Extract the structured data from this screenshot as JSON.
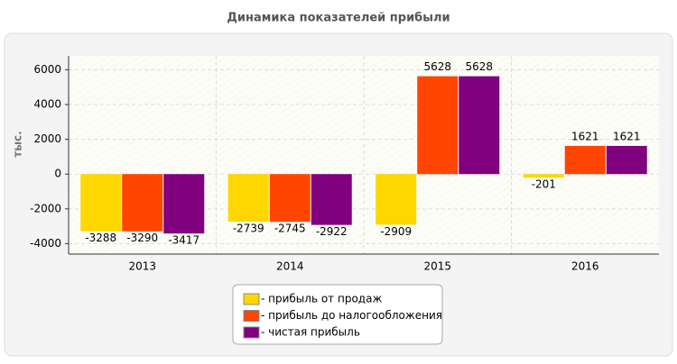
{
  "chart_data": {
    "type": "bar",
    "title": "Динамика показателей прибыли",
    "y_label": "тыс.",
    "categories": [
      "2013",
      "2014",
      "2015",
      "2016"
    ],
    "series": [
      {
        "name": "- прибыль от продаж",
        "color": "#ffd700",
        "values": [
          -3288,
          -2739,
          -2909,
          -201
        ]
      },
      {
        "name": "- прибыль до налогообложения",
        "color": "#ff4500",
        "values": [
          -3290,
          -2745,
          5628,
          1621
        ]
      },
      {
        "name": "- чистая прибыль",
        "color": "#800080",
        "values": [
          -3417,
          -2922,
          5628,
          1621
        ]
      }
    ],
    "ylim": [
      -4600,
      6800
    ],
    "yticks": [
      -4000,
      -2000,
      0,
      2000,
      4000,
      6000
    ],
    "grid": true,
    "legend": "bottom"
  }
}
